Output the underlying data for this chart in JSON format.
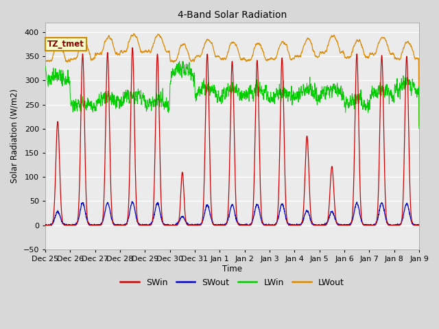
{
  "title": "4-Band Solar Radiation",
  "xlabel": "Time",
  "ylabel": "Solar Radiation (W/m2)",
  "ylim": [
    -50,
    420
  ],
  "colors": {
    "SWin": "#cc0000",
    "SWout": "#0000cc",
    "LWin": "#00cc00",
    "LWout": "#dd8800"
  },
  "background_color": "#d8d8d8",
  "plot_background": "#ebebeb",
  "grid_color": "#ffffff",
  "tick_dates": [
    "Dec 25",
    "Dec 26",
    "Dec 27",
    "Dec 28",
    "Dec 29",
    "Dec 30",
    "Dec 31",
    "Jan 1",
    "Jan 2",
    "Jan 3",
    "Jan 4",
    "Jan 5",
    "Jan 6",
    "Jan 7",
    "Jan 8",
    "Jan 9"
  ],
  "num_days": 15,
  "yticks": [
    -50,
    0,
    50,
    100,
    150,
    200,
    250,
    300,
    350,
    400
  ]
}
